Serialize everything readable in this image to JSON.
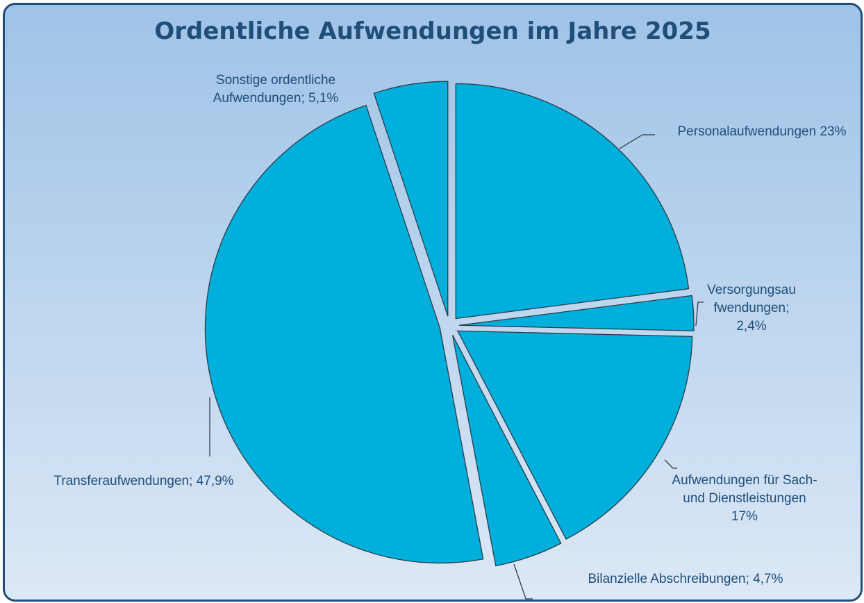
{
  "chart_data": {
    "type": "pie",
    "title": "Ordentliche Aufwendungen im Jahre 2025",
    "categories": [
      "Personalaufwendungen",
      "Versorgungsaufwendungen;",
      "Aufwendungen für Sach- und Dienstleistungen",
      "Bilanzielle Abschreibungen;",
      "Transferaufwendungen;",
      "Sonstige ordentliche Aufwendungen;"
    ],
    "values": [
      23,
      2.4,
      17,
      4.7,
      47.9,
      5.1
    ],
    "value_labels": [
      "23%",
      "2,4%",
      "17%",
      "4,7%",
      "47,9%",
      "5,1%"
    ],
    "color": "#00afdb"
  }
}
